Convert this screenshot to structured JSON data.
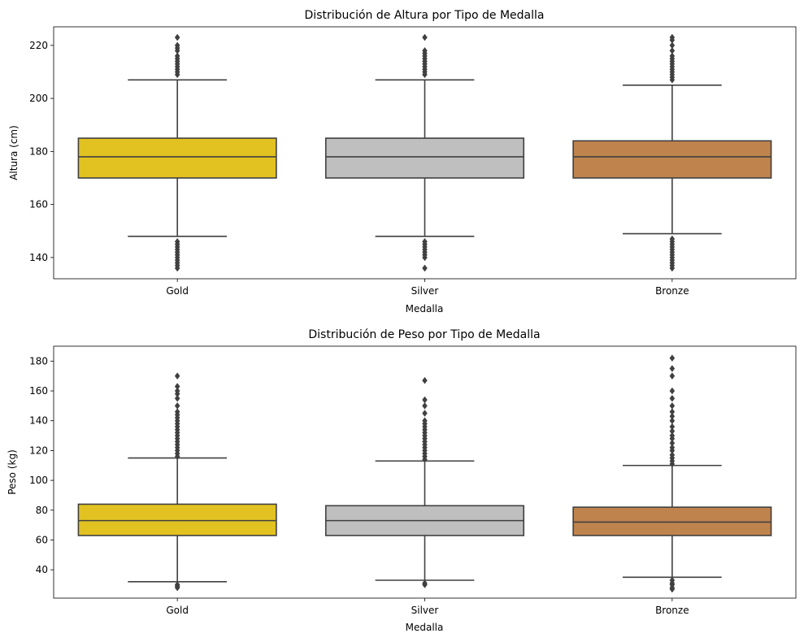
{
  "chart_data": [
    {
      "type": "box",
      "title": "Distribución de Altura por Tipo de Medalla",
      "xlabel": "Medalla",
      "ylabel": "Altura (cm)",
      "ylim": [
        132,
        227
      ],
      "yticks": [
        140,
        160,
        180,
        200,
        220
      ],
      "grid": false,
      "categories": [
        "Gold",
        "Silver",
        "Bronze"
      ],
      "boxes": [
        {
          "category": "Gold",
          "color": "#E2C220",
          "q1": 170,
          "median": 178,
          "q3": 185,
          "whisker_low": 148,
          "whisker_high": 207,
          "outliers_high": [
            209,
            210,
            211,
            212,
            213,
            214,
            215,
            216,
            218,
            219,
            220,
            223
          ],
          "outliers_low": [
            146,
            145,
            144,
            143,
            142,
            141,
            140,
            139,
            138,
            137,
            136
          ]
        },
        {
          "category": "Silver",
          "color": "#BFBFBF",
          "q1": 170,
          "median": 178,
          "q3": 185,
          "whisker_low": 148,
          "whisker_high": 207,
          "outliers_high": [
            209,
            210,
            211,
            212,
            213,
            214,
            215,
            216,
            217,
            218,
            223
          ],
          "outliers_low": [
            146,
            145,
            144,
            143,
            142,
            141,
            140,
            136
          ]
        },
        {
          "category": "Bronze",
          "color": "#BF844D",
          "q1": 170,
          "median": 178,
          "q3": 184,
          "whisker_low": 149,
          "whisker_high": 205,
          "outliers_high": [
            207,
            208,
            209,
            210,
            211,
            212,
            213,
            214,
            215,
            216,
            218,
            220,
            222,
            223
          ],
          "outliers_low": [
            147,
            146,
            145,
            144,
            143,
            142,
            141,
            140,
            139,
            138,
            137,
            136
          ]
        }
      ]
    },
    {
      "type": "box",
      "title": "Distribución de Peso por Tipo de Medalla",
      "xlabel": "Medalla",
      "ylabel": "Peso (kg)",
      "ylim": [
        21,
        190
      ],
      "yticks": [
        40,
        60,
        80,
        100,
        120,
        140,
        160,
        180
      ],
      "grid": false,
      "categories": [
        "Gold",
        "Silver",
        "Bronze"
      ],
      "boxes": [
        {
          "category": "Gold",
          "color": "#E2C220",
          "q1": 63,
          "median": 73,
          "q3": 84,
          "whisker_low": 32,
          "whisker_high": 115,
          "outliers_high": [
            116,
            118,
            120,
            122,
            124,
            126,
            128,
            130,
            132,
            134,
            136,
            138,
            140,
            142,
            144,
            146,
            150,
            155,
            158,
            160,
            163,
            170
          ],
          "outliers_low": [
            30,
            29,
            28
          ]
        },
        {
          "category": "Silver",
          "color": "#BFBFBF",
          "q1": 63,
          "median": 73,
          "q3": 83,
          "whisker_low": 33,
          "whisker_high": 113,
          "outliers_high": [
            114,
            116,
            118,
            120,
            122,
            124,
            126,
            128,
            130,
            132,
            134,
            136,
            138,
            140,
            145,
            150,
            154,
            167
          ],
          "outliers_low": [
            31,
            30
          ]
        },
        {
          "category": "Bronze",
          "color": "#BF844D",
          "q1": 63,
          "median": 72,
          "q3": 82,
          "whisker_low": 35,
          "whisker_high": 110,
          "outliers_high": [
            111,
            113,
            115,
            117,
            120,
            122,
            125,
            128,
            130,
            133,
            136,
            140,
            143,
            146,
            150,
            155,
            160,
            170,
            175,
            182
          ],
          "outliers_low": [
            33,
            31,
            30,
            28,
            27
          ]
        }
      ]
    }
  ]
}
